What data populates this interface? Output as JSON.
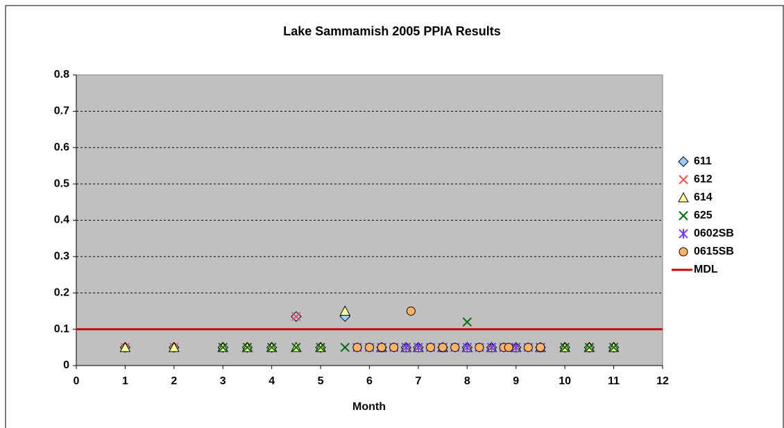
{
  "chart_data": {
    "type": "scatter",
    "title": "Lake Sammamish 2005 PPIA Results",
    "x_label": "Month",
    "xlim": [
      0,
      12
    ],
    "xticks": [
      0,
      1,
      2,
      3,
      4,
      5,
      6,
      7,
      8,
      9,
      10,
      11,
      12
    ],
    "ylim": [
      0,
      0.8
    ],
    "yticks": [
      0,
      0.1,
      0.2,
      0.3,
      0.4,
      0.5,
      0.6,
      0.7,
      0.8
    ],
    "grid": true,
    "legend": "right",
    "series": [
      {
        "name": "611",
        "color": "#99ccff",
        "marker": "diamond",
        "x": [
          1,
          2,
          3,
          3.5,
          4,
          4.5,
          5,
          5.5,
          6.25,
          6.75,
          7,
          7.5,
          8,
          8.5,
          9,
          9.5,
          10,
          10.5,
          11
        ],
        "values": [
          0.05,
          0.05,
          0.05,
          0.05,
          0.05,
          0.135,
          0.05,
          0.135,
          0.05,
          0.05,
          0.05,
          0.05,
          0.05,
          0.05,
          0.05,
          0.05,
          0.05,
          0.05,
          0.05
        ]
      },
      {
        "name": "612",
        "color": "#ff5050",
        "marker": "x",
        "x": [
          1,
          2,
          3,
          3.5,
          4,
          4.5,
          5,
          6.25,
          6.75,
          7,
          7.5,
          8,
          8.5,
          9,
          9.5,
          10,
          10.5,
          11
        ],
        "values": [
          0.05,
          0.05,
          0.05,
          0.05,
          0.05,
          0.135,
          0.05,
          0.05,
          0.05,
          0.05,
          0.05,
          0.05,
          0.05,
          0.05,
          0.05,
          0.05,
          0.05,
          0.05
        ]
      },
      {
        "name": "614",
        "color": "#ffff99",
        "marker": "triangle",
        "x": [
          1,
          2,
          3,
          3.5,
          4,
          4.5,
          5,
          5.5,
          6.25,
          6.75,
          7,
          7.5,
          8,
          8.5,
          9,
          9.5,
          10,
          10.5,
          11
        ],
        "values": [
          0.05,
          0.05,
          0.05,
          0.05,
          0.05,
          0.05,
          0.05,
          0.15,
          0.05,
          0.05,
          0.05,
          0.05,
          0.05,
          0.05,
          0.05,
          0.05,
          0.05,
          0.05,
          0.05
        ]
      },
      {
        "name": "625",
        "color": "#007000",
        "marker": "x",
        "x": [
          3,
          3.5,
          4,
          4.5,
          5,
          5.5,
          6.25,
          6.75,
          7,
          7.5,
          8,
          8.5,
          9,
          9.5,
          10,
          10.5,
          11
        ],
        "values": [
          0.05,
          0.05,
          0.05,
          0.05,
          0.05,
          0.05,
          0.05,
          0.05,
          0.05,
          0.05,
          0.12,
          0.05,
          0.05,
          0.05,
          0.05,
          0.05,
          0.05
        ]
      },
      {
        "name": "0602SB",
        "color": "#7a3cff",
        "marker": "star",
        "x": [
          5.75,
          6,
          6.25,
          6.5,
          6.75,
          7,
          7.25,
          7.5,
          7.75,
          8,
          8.25,
          8.5,
          8.75,
          9,
          9.25,
          9.5
        ],
        "values": [
          0.05,
          0.05,
          0.05,
          0.05,
          0.05,
          0.05,
          0.05,
          0.05,
          0.05,
          0.05,
          0.05,
          0.05,
          0.05,
          0.05,
          0.05,
          0.05
        ]
      },
      {
        "name": "0615SB",
        "color": "#ffb366",
        "marker": "circle",
        "x": [
          5.75,
          6,
          6.25,
          6.5,
          6.85,
          7.25,
          7.5,
          7.75,
          8.25,
          8.75,
          8.85,
          9.25,
          9.5
        ],
        "values": [
          0.05,
          0.05,
          0.05,
          0.05,
          0.15,
          0.05,
          0.05,
          0.05,
          0.05,
          0.05,
          0.05,
          0.05,
          0.05
        ]
      },
      {
        "name": "MDL",
        "color": "#cc0000",
        "marker": "line",
        "x": [
          0,
          12
        ],
        "values": [
          0.1,
          0.1
        ]
      }
    ]
  }
}
